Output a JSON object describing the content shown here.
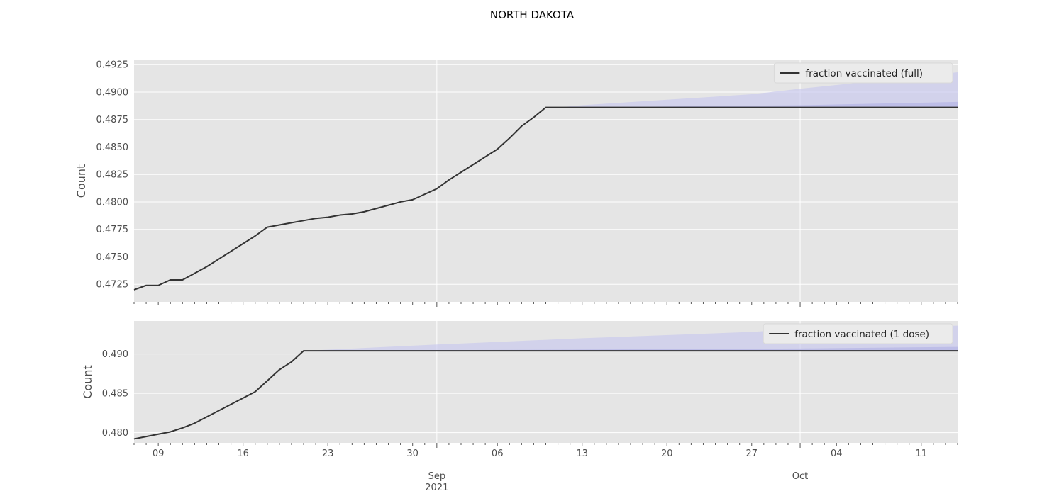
{
  "figure_title": "NORTH DAKOTA",
  "colors": {
    "panel_bg": "#e5e5e5",
    "grid": "#ffffff",
    "line": "#333333",
    "band": "#c8c8ee",
    "tick": "#555555"
  },
  "x_axis": {
    "minor_interval_days": 1,
    "major_ticks": [
      {
        "date": "2021-09-01",
        "label": "Sep",
        "sublabel": "2021"
      },
      {
        "date": "2021-10-01",
        "label": "Oct",
        "sublabel": ""
      }
    ],
    "labeled_ticks": [
      {
        "date": "2021-08-09",
        "label": "09"
      },
      {
        "date": "2021-08-16",
        "label": "16"
      },
      {
        "date": "2021-08-23",
        "label": "23"
      },
      {
        "date": "2021-08-30",
        "label": "30"
      },
      {
        "date": "2021-09-06",
        "label": "06"
      },
      {
        "date": "2021-09-13",
        "label": "13"
      },
      {
        "date": "2021-09-20",
        "label": "20"
      },
      {
        "date": "2021-09-27",
        "label": "27"
      },
      {
        "date": "2021-10-04",
        "label": "04"
      },
      {
        "date": "2021-10-11",
        "label": "11"
      }
    ]
  },
  "chart_data": [
    {
      "type": "line",
      "ylabel": "Count",
      "xlim": [
        "2021-08-07",
        "2021-10-14"
      ],
      "ylim": [
        0.4709,
        0.4929
      ],
      "yticks": [
        0.4725,
        0.475,
        0.4775,
        0.48,
        0.4825,
        0.485,
        0.4875,
        0.49,
        0.4925
      ],
      "ytick_labels": [
        "0.4725",
        "0.4750",
        "0.4775",
        "0.4800",
        "0.4825",
        "0.4850",
        "0.4875",
        "0.4900",
        "0.4925"
      ],
      "grid": true,
      "legend": {
        "label": "fraction vaccinated (full)",
        "position": "top-right"
      },
      "series": [
        {
          "name": "fraction vaccinated (full)",
          "x": [
            "2021-08-07",
            "2021-08-08",
            "2021-08-09",
            "2021-08-10",
            "2021-08-11",
            "2021-08-12",
            "2021-08-13",
            "2021-08-14",
            "2021-08-15",
            "2021-08-16",
            "2021-08-17",
            "2021-08-18",
            "2021-08-19",
            "2021-08-20",
            "2021-08-21",
            "2021-08-22",
            "2021-08-23",
            "2021-08-24",
            "2021-08-25",
            "2021-08-26",
            "2021-08-27",
            "2021-08-28",
            "2021-08-29",
            "2021-08-30",
            "2021-08-31",
            "2021-09-01",
            "2021-09-02",
            "2021-09-03",
            "2021-09-04",
            "2021-09-05",
            "2021-09-06",
            "2021-09-07",
            "2021-09-08",
            "2021-09-09",
            "2021-09-10",
            "2021-09-11",
            "2021-10-14"
          ],
          "y": [
            0.472,
            0.4724,
            0.4724,
            0.4729,
            0.4729,
            0.4735,
            0.4741,
            0.4748,
            0.4755,
            0.4762,
            0.4769,
            0.4777,
            0.4779,
            0.4781,
            0.4783,
            0.4785,
            0.4786,
            0.4788,
            0.4789,
            0.4791,
            0.4794,
            0.4797,
            0.48,
            0.4802,
            0.4807,
            0.4812,
            0.482,
            0.4827,
            0.4834,
            0.4841,
            0.4848,
            0.4858,
            0.4869,
            0.4877,
            0.4886,
            0.4886,
            0.4886
          ]
        }
      ],
      "forecast_band": {
        "x": [
          "2021-09-11",
          "2021-09-13",
          "2021-09-20",
          "2021-09-27",
          "2021-10-01",
          "2021-10-14"
        ],
        "upper": [
          0.4886,
          0.4888,
          0.4893,
          0.4898,
          0.4903,
          0.4918
        ],
        "lower": [
          0.4886,
          0.4886,
          0.4886,
          0.4886,
          0.4886,
          0.4886
        ]
      },
      "forecast_inner_band": {
        "x": [
          "2021-09-11",
          "2021-10-01",
          "2021-10-14"
        ],
        "upper": [
          0.4886,
          0.4888,
          0.4891
        ],
        "lower": [
          0.4886,
          0.4886,
          0.4886
        ]
      }
    },
    {
      "type": "line",
      "ylabel": "Count",
      "xlim": [
        "2021-08-07",
        "2021-10-14"
      ],
      "ylim": [
        0.4787,
        0.4942
      ],
      "yticks": [
        0.48,
        0.485,
        0.49
      ],
      "ytick_labels": [
        "0.480",
        "0.485",
        "0.490"
      ],
      "grid": true,
      "legend": {
        "label": "fraction vaccinated (1 dose)",
        "position": "top-right"
      },
      "series": [
        {
          "name": "fraction vaccinated (1 dose)",
          "x": [
            "2021-08-07",
            "2021-08-08",
            "2021-08-09",
            "2021-08-10",
            "2021-08-11",
            "2021-08-12",
            "2021-08-13",
            "2021-08-14",
            "2021-08-15",
            "2021-08-16",
            "2021-08-17",
            "2021-08-18",
            "2021-08-19",
            "2021-08-20",
            "2021-08-21",
            "2021-10-14"
          ],
          "y": [
            0.4792,
            0.4795,
            0.4798,
            0.4801,
            0.4806,
            0.4812,
            0.482,
            0.4828,
            0.4836,
            0.4844,
            0.4852,
            0.4866,
            0.488,
            0.489,
            0.4904,
            0.4904
          ]
        }
      ],
      "forecast_band": {
        "x": [
          "2021-08-21",
          "2021-09-01",
          "2021-09-13",
          "2021-09-27",
          "2021-10-01",
          "2021-10-14"
        ],
        "upper": [
          0.4904,
          0.4912,
          0.492,
          0.4928,
          0.4932,
          0.4936
        ],
        "lower": [
          0.4904,
          0.4904,
          0.4904,
          0.4904,
          0.4904,
          0.4904
        ]
      },
      "forecast_inner_band": {
        "x": [
          "2021-08-21",
          "2021-10-01",
          "2021-10-14"
        ],
        "upper": [
          0.4904,
          0.4907,
          0.4909
        ],
        "lower": [
          0.4904,
          0.4904,
          0.4904
        ]
      }
    }
  ]
}
